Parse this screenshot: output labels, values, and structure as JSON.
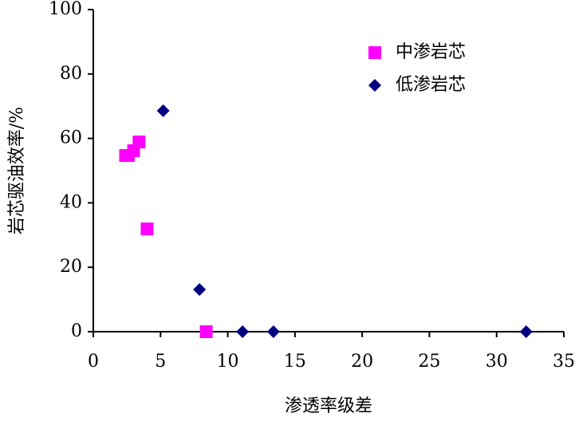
{
  "chart_data": {
    "type": "scatter",
    "xlabel": "渗透率级差",
    "ylabel": "岩芯驱油效率/%",
    "xlim": [
      0,
      35
    ],
    "xticks": [
      0,
      5,
      10,
      15,
      20,
      25,
      30,
      35
    ],
    "ylim": [
      0,
      100
    ],
    "yticks": [
      0,
      20,
      40,
      60,
      80,
      100
    ],
    "grid": false,
    "legend": "upper right",
    "series": [
      {
        "name": "中渗岩芯",
        "color": "#ff00ff",
        "marker": "square",
        "x": [
          2.4,
          2.6,
          3.0,
          3.4,
          4.0,
          8.4
        ],
        "values": [
          54.7,
          54.7,
          56.2,
          58.9,
          31.9,
          0
        ]
      },
      {
        "name": "低渗岩芯",
        "color": "#000080",
        "marker": "diamond",
        "x": [
          5.2,
          7.9,
          11.1,
          13.4,
          32.2
        ],
        "values": [
          68.6,
          13.1,
          0,
          0,
          0
        ]
      }
    ]
  }
}
